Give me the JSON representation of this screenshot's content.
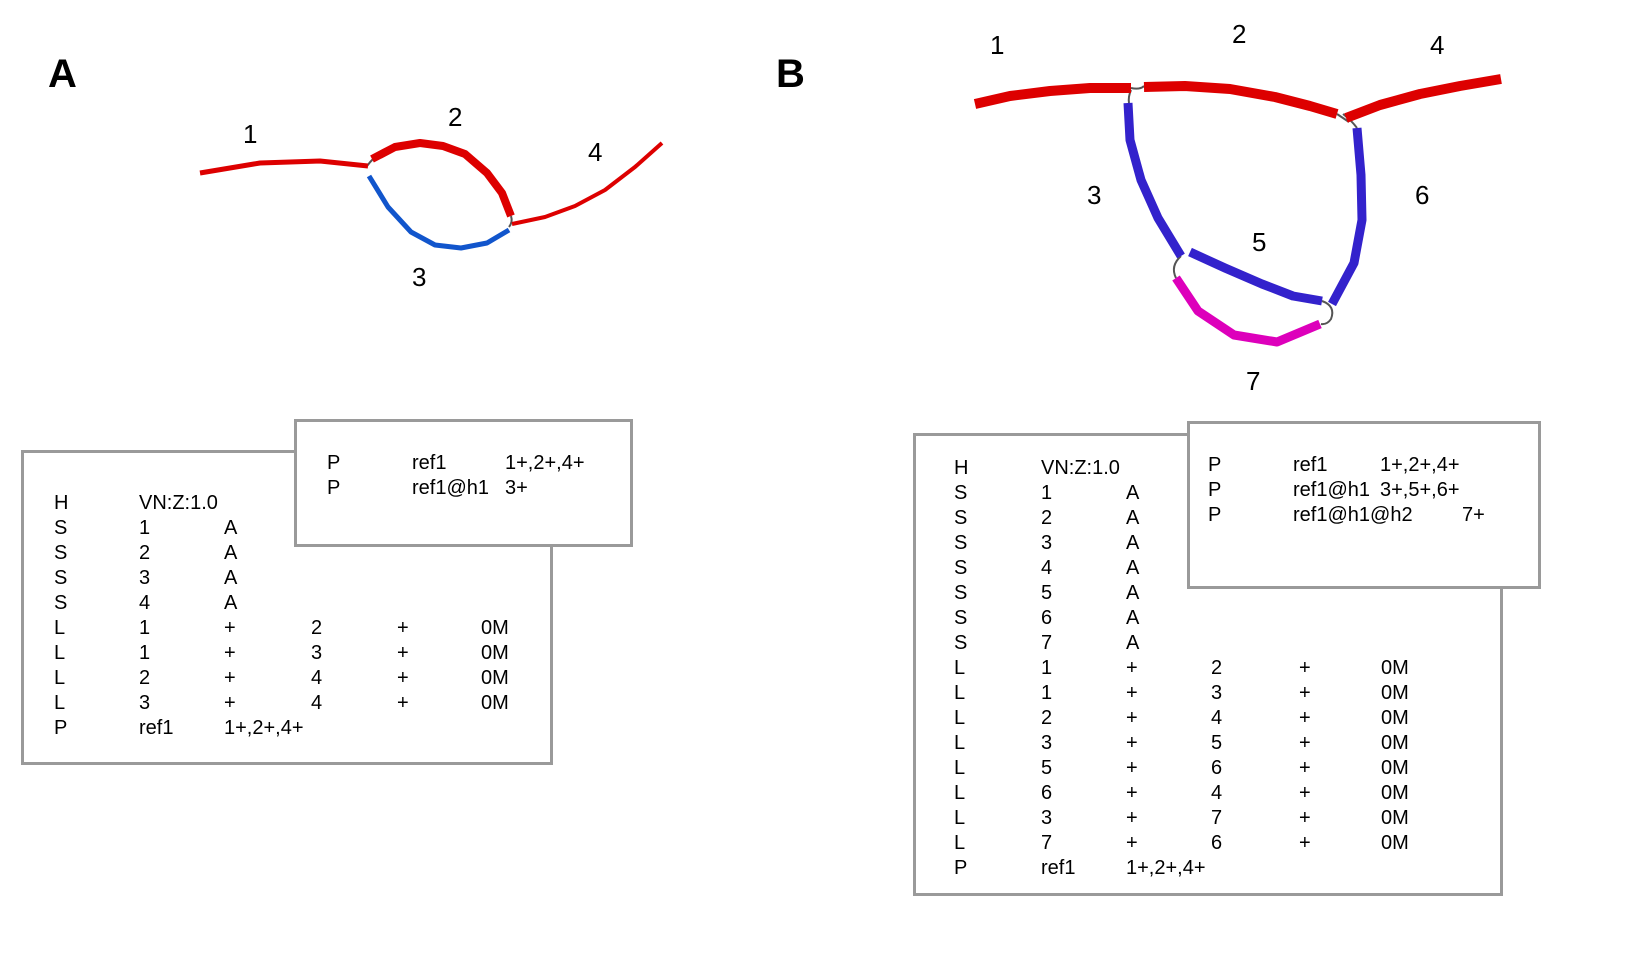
{
  "panel_a": {
    "label": "A",
    "segments": {
      "s1": "1",
      "s2": "2",
      "s3": "3",
      "s4": "4"
    },
    "gfa_rows": [
      [
        "H",
        "VN:Z:1.0"
      ],
      [
        "S",
        "1",
        "A"
      ],
      [
        "S",
        "2",
        "A"
      ],
      [
        "S",
        "3",
        "A"
      ],
      [
        "S",
        "4",
        "A"
      ],
      [
        "L",
        "1",
        "+",
        "2",
        "+",
        "0M"
      ],
      [
        "L",
        "1",
        "+",
        "3",
        "+",
        "0M"
      ],
      [
        "L",
        "2",
        "+",
        "4",
        "+",
        "0M"
      ],
      [
        "L",
        "3",
        "+",
        "4",
        "+",
        "0M"
      ],
      [
        "P",
        "ref1",
        "1+,2+,4+"
      ]
    ],
    "path_rows": [
      [
        "P",
        "ref1",
        "1+,2+,4+"
      ],
      [
        "P",
        "ref1@h1",
        "3+"
      ]
    ]
  },
  "panel_b": {
    "label": "B",
    "segments": {
      "s1": "1",
      "s2": "2",
      "s3": "3",
      "s4": "4",
      "s5": "5",
      "s6": "6",
      "s7": "7"
    },
    "gfa_rows": [
      [
        "H",
        "VN:Z:1.0"
      ],
      [
        "S",
        "1",
        "A"
      ],
      [
        "S",
        "2",
        "A"
      ],
      [
        "S",
        "3",
        "A"
      ],
      [
        "S",
        "4",
        "A"
      ],
      [
        "S",
        "5",
        "A"
      ],
      [
        "S",
        "6",
        "A"
      ],
      [
        "S",
        "7",
        "A"
      ],
      [
        "L",
        "1",
        "+",
        "2",
        "+",
        "0M"
      ],
      [
        "L",
        "1",
        "+",
        "3",
        "+",
        "0M"
      ],
      [
        "L",
        "2",
        "+",
        "4",
        "+",
        "0M"
      ],
      [
        "L",
        "3",
        "+",
        "5",
        "+",
        "0M"
      ],
      [
        "L",
        "5",
        "+",
        "6",
        "+",
        "0M"
      ],
      [
        "L",
        "6",
        "+",
        "4",
        "+",
        "0M"
      ],
      [
        "L",
        "3",
        "+",
        "7",
        "+",
        "0M"
      ],
      [
        "L",
        "7",
        "+",
        "6",
        "+",
        "0M"
      ],
      [
        "P",
        "ref1",
        "1+,2+,4+"
      ]
    ],
    "path_rows": [
      [
        "P",
        "ref1",
        "1+,2+,4+"
      ],
      [
        "P",
        "ref1@h1",
        "3+,5+,6+"
      ],
      [
        "P",
        "ref1@h1@h2",
        "7+"
      ]
    ]
  },
  "colors": {
    "red": "#dd0000",
    "blue_a": "#1155cc",
    "blue_b": "#3322cc",
    "magenta": "#dd00bb",
    "connector": "#555555",
    "box_border": "#9a9a9a"
  }
}
